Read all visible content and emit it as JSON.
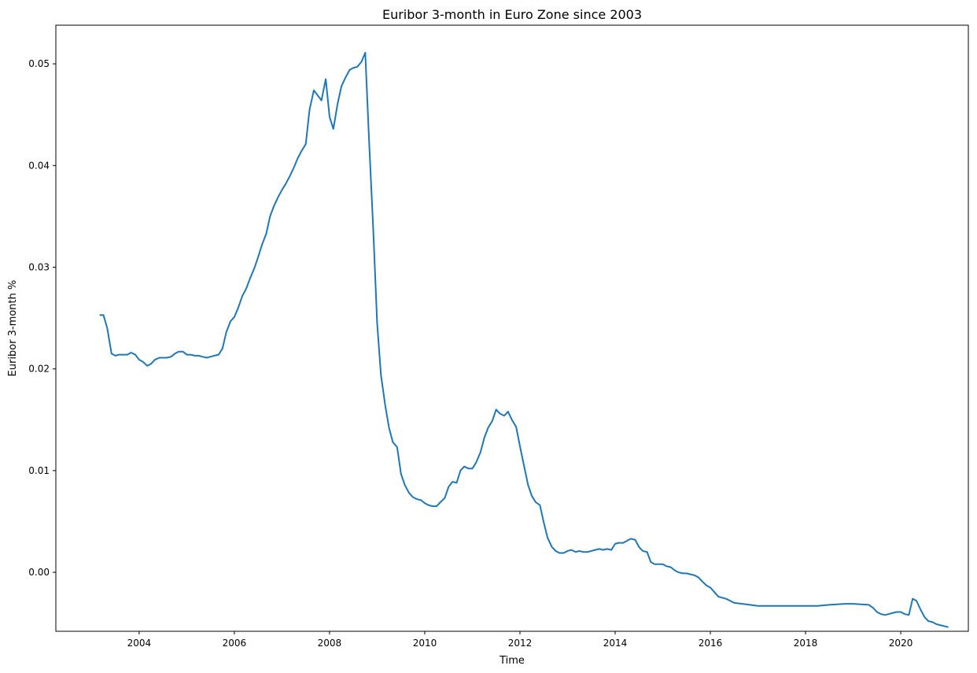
{
  "chart_data": {
    "type": "line",
    "title": "Euribor 3-month in Euro Zone since 2003",
    "xlabel": "Time",
    "ylabel": "Euribor 3-month %",
    "xlim": [
      2002.25,
      2021.42
    ],
    "ylim": [
      -0.0058,
      0.0538
    ],
    "x_ticks": [
      2004,
      2006,
      2008,
      2010,
      2012,
      2014,
      2016,
      2018,
      2020
    ],
    "x_tick_labels": [
      "2004",
      "2006",
      "2008",
      "2010",
      "2012",
      "2014",
      "2016",
      "2018",
      "2020"
    ],
    "y_ticks": [
      0.0,
      0.01,
      0.02,
      0.03,
      0.04,
      0.05
    ],
    "y_tick_labels": [
      "0.00",
      "0.01",
      "0.02",
      "0.03",
      "0.04",
      "0.05"
    ],
    "grid": false,
    "legend": "none",
    "line_color": "#1f77b4",
    "series": [
      {
        "x": [
          2003.17,
          2003.25,
          2003.33,
          2003.42,
          2003.5,
          2003.58,
          2003.67,
          2003.75,
          2003.83,
          2003.92,
          2004.0,
          2004.08,
          2004.17,
          2004.25,
          2004.33,
          2004.42,
          2004.5,
          2004.58,
          2004.67,
          2004.75,
          2004.83,
          2004.92,
          2005.0,
          2005.08,
          2005.17,
          2005.25,
          2005.33,
          2005.42,
          2005.5,
          2005.58,
          2005.67,
          2005.75,
          2005.83,
          2005.92,
          2006.0,
          2006.08,
          2006.17,
          2006.25,
          2006.33,
          2006.42,
          2006.5,
          2006.58,
          2006.67,
          2006.75,
          2006.83,
          2006.92,
          2007.0,
          2007.08,
          2007.17,
          2007.25,
          2007.33,
          2007.42,
          2007.5,
          2007.58,
          2007.67,
          2007.75,
          2007.83,
          2007.92,
          2008.0,
          2008.08,
          2008.17,
          2008.25,
          2008.33,
          2008.42,
          2008.5,
          2008.58,
          2008.67,
          2008.75,
          2008.83,
          2008.92,
          2009.0,
          2009.08,
          2009.17,
          2009.25,
          2009.33,
          2009.42,
          2009.5,
          2009.58,
          2009.67,
          2009.75,
          2009.83,
          2009.92,
          2010.0,
          2010.08,
          2010.17,
          2010.25,
          2010.33,
          2010.42,
          2010.5,
          2010.58,
          2010.67,
          2010.75,
          2010.83,
          2010.92,
          2011.0,
          2011.08,
          2011.17,
          2011.25,
          2011.33,
          2011.42,
          2011.5,
          2011.58,
          2011.67,
          2011.75,
          2011.83,
          2011.92,
          2012.0,
          2012.08,
          2012.17,
          2012.25,
          2012.33,
          2012.42,
          2012.5,
          2012.58,
          2012.67,
          2012.75,
          2012.83,
          2012.92,
          2013.0,
          2013.08,
          2013.17,
          2013.25,
          2013.33,
          2013.42,
          2013.5,
          2013.58,
          2013.67,
          2013.75,
          2013.83,
          2013.92,
          2014.0,
          2014.08,
          2014.17,
          2014.25,
          2014.33,
          2014.42,
          2014.5,
          2014.58,
          2014.67,
          2014.75,
          2014.83,
          2014.92,
          2015.0,
          2015.08,
          2015.17,
          2015.25,
          2015.33,
          2015.42,
          2015.5,
          2015.58,
          2015.67,
          2015.75,
          2015.83,
          2015.92,
          2016.0,
          2016.17,
          2016.33,
          2016.5,
          2016.67,
          2016.83,
          2017.0,
          2017.5,
          2018.0,
          2018.25,
          2018.5,
          2018.83,
          2019.0,
          2019.33,
          2019.42,
          2019.5,
          2019.58,
          2019.67,
          2019.75,
          2019.83,
          2019.92,
          2020.0,
          2020.08,
          2020.17,
          2020.25,
          2020.33,
          2020.42,
          2020.5,
          2020.58,
          2020.67,
          2020.75,
          2020.83,
          2020.92,
          2021.0
        ],
        "y": [
          0.0253,
          0.0253,
          0.024,
          0.0215,
          0.0213,
          0.0214,
          0.0214,
          0.0214,
          0.0216,
          0.0214,
          0.0209,
          0.0207,
          0.0203,
          0.0205,
          0.0209,
          0.0211,
          0.0211,
          0.0211,
          0.0212,
          0.0215,
          0.0217,
          0.0217,
          0.0214,
          0.0214,
          0.0213,
          0.0213,
          0.0212,
          0.0211,
          0.0212,
          0.0213,
          0.0214,
          0.022,
          0.0236,
          0.0247,
          0.0251,
          0.026,
          0.0272,
          0.0279,
          0.0289,
          0.0299,
          0.031,
          0.0322,
          0.0333,
          0.035,
          0.036,
          0.0369,
          0.0376,
          0.0382,
          0.039,
          0.0398,
          0.0407,
          0.0415,
          0.0421,
          0.0455,
          0.0474,
          0.0469,
          0.0464,
          0.0485,
          0.0448,
          0.0436,
          0.0461,
          0.0478,
          0.0486,
          0.0494,
          0.0496,
          0.0497,
          0.0502,
          0.0511,
          0.0425,
          0.0335,
          0.0245,
          0.0194,
          0.0164,
          0.0142,
          0.0128,
          0.0123,
          0.0097,
          0.0086,
          0.0078,
          0.0074,
          0.0072,
          0.0071,
          0.0068,
          0.0066,
          0.0065,
          0.0065,
          0.0069,
          0.0073,
          0.0084,
          0.0089,
          0.0088,
          0.01,
          0.0104,
          0.0102,
          0.0102,
          0.0108,
          0.0118,
          0.0132,
          0.0142,
          0.0149,
          0.016,
          0.0156,
          0.0154,
          0.0158,
          0.015,
          0.0143,
          0.0124,
          0.0106,
          0.0086,
          0.0075,
          0.0069,
          0.0066,
          0.0049,
          0.0034,
          0.0025,
          0.0021,
          0.0019,
          0.0019,
          0.0021,
          0.0022,
          0.002,
          0.0021,
          0.002,
          0.002,
          0.0021,
          0.0022,
          0.0023,
          0.0022,
          0.0023,
          0.0022,
          0.0028,
          0.0029,
          0.0029,
          0.0031,
          0.0033,
          0.0032,
          0.0025,
          0.0021,
          0.002,
          0.001,
          0.0008,
          0.0008,
          0.0008,
          0.0006,
          0.0005,
          0.0002,
          0.0,
          -0.0001,
          -0.0001,
          -0.0002,
          -0.0003,
          -0.0005,
          -0.0009,
          -0.0013,
          -0.0015,
          -0.0024,
          -0.0026,
          -0.003,
          -0.0031,
          -0.0032,
          -0.0033,
          -0.0033,
          -0.0033,
          -0.0033,
          -0.0032,
          -0.0031,
          -0.0031,
          -0.0032,
          -0.0035,
          -0.0039,
          -0.0041,
          -0.0042,
          -0.0041,
          -0.004,
          -0.0039,
          -0.0039,
          -0.0041,
          -0.0042,
          -0.0026,
          -0.0028,
          -0.0037,
          -0.0044,
          -0.0048,
          -0.0049,
          -0.0051,
          -0.0052,
          -0.0053,
          -0.0054
        ]
      }
    ]
  }
}
